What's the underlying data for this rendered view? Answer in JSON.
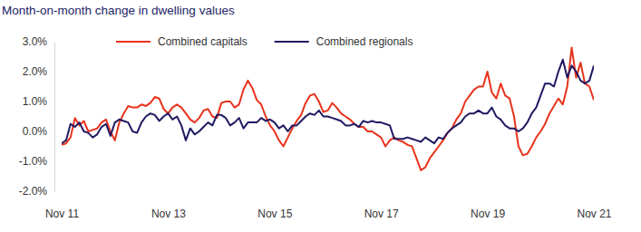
{
  "chart_data": {
    "type": "line",
    "title": "Month-on-month change in dwelling values",
    "categories": [
      "Nov 11",
      null,
      null,
      null,
      null,
      null,
      null,
      null,
      null,
      null,
      null,
      null,
      null,
      null,
      null,
      null,
      null,
      null,
      null,
      null,
      null,
      null,
      null,
      null,
      "Nov 13",
      null,
      null,
      null,
      null,
      null,
      null,
      null,
      null,
      null,
      null,
      null,
      null,
      null,
      null,
      null,
      null,
      null,
      null,
      null,
      null,
      null,
      null,
      null,
      "Nov 15",
      null,
      null,
      null,
      null,
      null,
      null,
      null,
      null,
      null,
      null,
      null,
      null,
      null,
      null,
      null,
      null,
      null,
      null,
      null,
      null,
      null,
      null,
      null,
      "Nov 17",
      null,
      null,
      null,
      null,
      null,
      null,
      null,
      null,
      null,
      null,
      null,
      null,
      null,
      null,
      null,
      null,
      null,
      null,
      null,
      null,
      null,
      null,
      null,
      "Nov 19",
      null,
      null,
      null,
      null,
      null,
      null,
      null,
      null,
      null,
      null,
      null,
      null,
      null,
      null,
      null,
      null,
      null,
      null,
      null,
      null,
      null,
      null,
      null,
      "Nov 21"
    ],
    "series": [
      {
        "name": "Combined capitals",
        "color": "#e8331c",
        "values": [
          -0.45,
          -0.4,
          -0.2,
          0.45,
          0.2,
          0.35,
          0.0,
          0.05,
          0.1,
          0.3,
          0.4,
          0.0,
          -0.3,
          0.3,
          0.6,
          0.85,
          0.8,
          0.8,
          0.9,
          0.85,
          0.95,
          1.15,
          1.1,
          0.75,
          0.6,
          0.8,
          0.9,
          0.8,
          0.6,
          0.4,
          0.3,
          0.45,
          0.7,
          0.75,
          0.5,
          0.45,
          0.95,
          1.0,
          1.0,
          0.8,
          0.9,
          1.4,
          1.7,
          1.45,
          1.05,
          0.9,
          0.5,
          0.2,
          0.0,
          -0.3,
          -0.5,
          -0.2,
          0.1,
          0.35,
          0.55,
          0.95,
          1.2,
          1.25,
          1.0,
          0.65,
          0.7,
          0.95,
          0.8,
          0.6,
          0.5,
          0.4,
          0.25,
          0.15,
          0.15,
          0.0,
          0.0,
          -0.1,
          -0.2,
          -0.5,
          -0.3,
          -0.2,
          -0.3,
          -0.35,
          -0.45,
          -0.5,
          -0.9,
          -1.3,
          -1.2,
          -0.9,
          -0.7,
          -0.5,
          -0.3,
          -0.05,
          0.1,
          0.4,
          0.6,
          1.0,
          1.2,
          1.4,
          1.5,
          1.5,
          2.0,
          1.3,
          1.1,
          1.6,
          1.2,
          1.1,
          0.5,
          -0.5,
          -0.8,
          -0.75,
          -0.5,
          -0.2,
          0.0,
          0.25,
          0.6,
          0.85,
          1.1,
          0.9,
          1.5,
          2.8,
          1.8,
          2.3,
          1.6,
          1.5,
          1.05
        ]
      },
      {
        "name": "Combined regionals",
        "color": "#1f1a62",
        "values": [
          -0.4,
          -0.3,
          0.25,
          0.15,
          0.3,
          0.0,
          -0.05,
          -0.2,
          -0.1,
          0.15,
          0.25,
          -0.15,
          0.3,
          0.4,
          0.35,
          0.3,
          0.0,
          -0.05,
          0.3,
          0.5,
          0.6,
          0.55,
          0.35,
          0.5,
          0.6,
          0.4,
          0.5,
          0.2,
          -0.3,
          0.1,
          -0.1,
          0.0,
          0.15,
          0.3,
          0.2,
          0.55,
          0.55,
          0.45,
          0.2,
          0.3,
          0.45,
          0.1,
          0.3,
          0.3,
          0.3,
          0.45,
          0.35,
          0.4,
          0.3,
          0.1,
          0.2,
          0.0,
          0.2,
          0.2,
          0.35,
          0.5,
          0.6,
          0.55,
          0.7,
          0.5,
          0.5,
          0.45,
          0.4,
          0.35,
          0.2,
          0.2,
          0.25,
          0.15,
          0.35,
          0.3,
          0.35,
          0.3,
          0.3,
          0.25,
          0.2,
          -0.25,
          -0.25,
          -0.25,
          -0.2,
          -0.25,
          -0.3,
          -0.35,
          -0.2,
          -0.3,
          -0.4,
          -0.2,
          -0.25,
          -0.05,
          0.1,
          0.2,
          0.3,
          0.5,
          0.6,
          0.6,
          0.7,
          0.6,
          0.6,
          0.8,
          0.5,
          0.4,
          0.2,
          0.1,
          0.1,
          0.0,
          0.1,
          0.3,
          0.6,
          0.8,
          1.2,
          1.6,
          1.6,
          1.5,
          2.0,
          2.4,
          1.8,
          2.2,
          2.0,
          1.7,
          1.6,
          1.7,
          2.2
        ]
      }
    ],
    "ylim": [
      -2,
      3
    ],
    "yticks": [
      {
        "value": -2,
        "label": "-2.0%"
      },
      {
        "value": -1,
        "label": "-1.0%"
      },
      {
        "value": 0,
        "label": "0.0%"
      },
      {
        "value": 1,
        "label": "1.0%"
      },
      {
        "value": 2,
        "label": "2.0%"
      },
      {
        "value": 3,
        "label": "3.0%"
      }
    ],
    "grid": false,
    "legend": "top"
  }
}
